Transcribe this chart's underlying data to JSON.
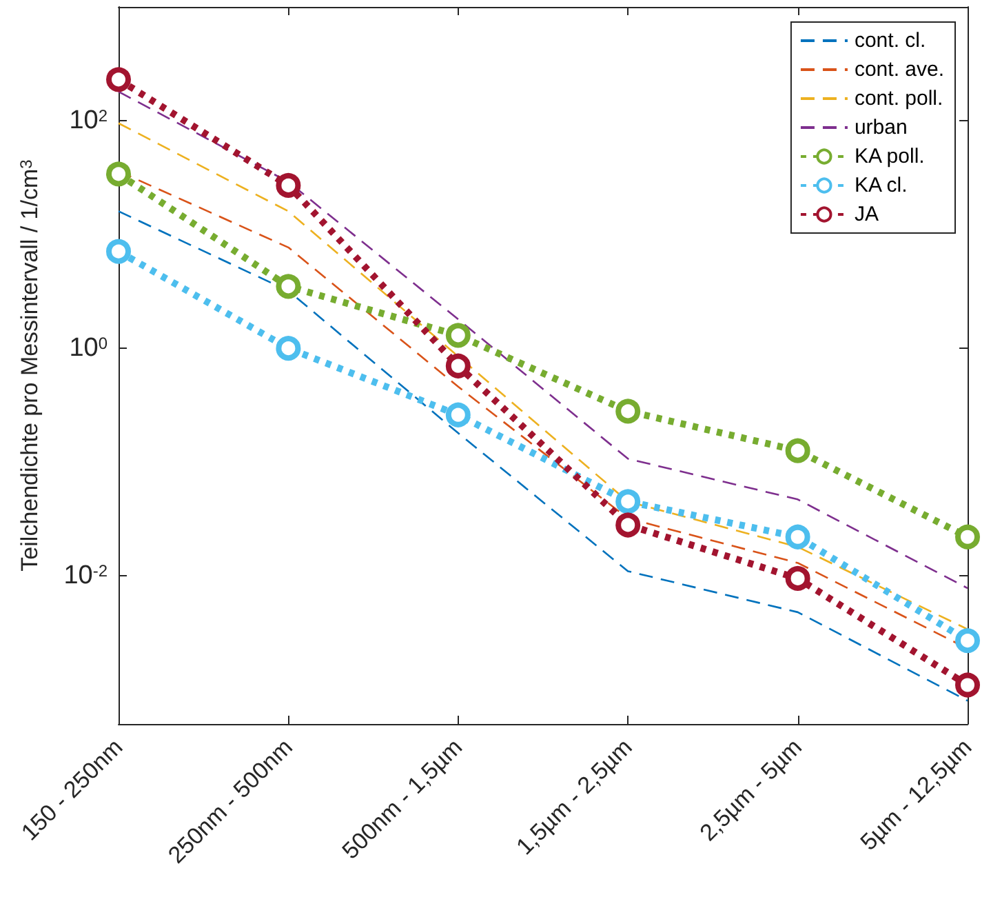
{
  "chart_data": {
    "type": "line",
    "ylabel": "Teilchendichte pro Messintervall / 1/cm$^{3}$",
    "categories": [
      "150 - 250nm",
      "250nm - 500nm",
      "500nm - 1,5µm",
      "1,5µm - 2,5µm",
      "2,5µm - 5µm",
      "5µm - 12,5µm"
    ],
    "log": true,
    "ylim": [
      0.0005,
      1000
    ],
    "yticks": [
      {
        "value": 0.01,
        "label": "10$^{-2}$"
      },
      {
        "value": 1,
        "label": "10$^{0}$"
      },
      {
        "value": 100,
        "label": "10$^{2}$"
      }
    ],
    "grid": false,
    "legend": "top right",
    "series": [
      {
        "name": "cont. cl.",
        "color": "#0072bd",
        "line_style": "dashed",
        "marker": "none",
        "values": [
          16,
          3.2,
          0.18,
          0.011,
          0.0048,
          0.0008
        ]
      },
      {
        "name": "cont. ave.",
        "color": "#d95319",
        "line_style": "dashed",
        "marker": "none",
        "values": [
          36,
          7.7,
          0.46,
          0.032,
          0.013,
          0.0023
        ]
      },
      {
        "name": "cont. poll.",
        "color": "#edb120",
        "line_style": "dashed",
        "marker": "none",
        "values": [
          95,
          16,
          0.85,
          0.045,
          0.018,
          0.0034
        ]
      },
      {
        "name": "urban",
        "color": "#7e2f8e",
        "line_style": "dashed",
        "marker": "none",
        "values": [
          180,
          29,
          1.8,
          0.107,
          0.047,
          0.0078
        ]
      },
      {
        "name": "KA poll.",
        "color": "#77ac30",
        "line_style": "dotted",
        "marker": "circle",
        "values": [
          34,
          3.5,
          1.3,
          0.28,
          0.126,
          0.022
        ]
      },
      {
        "name": "KA cl.",
        "color": "#4dbeee",
        "line_style": "dotted",
        "marker": "circle",
        "values": [
          7.1,
          1.0,
          0.26,
          0.045,
          0.022,
          0.0027
        ]
      },
      {
        "name": "JA",
        "color": "#a2142f",
        "line_style": "dotted",
        "marker": "circle",
        "values": [
          230,
          27,
          0.7,
          0.028,
          0.0095,
          0.0011
        ]
      }
    ]
  }
}
